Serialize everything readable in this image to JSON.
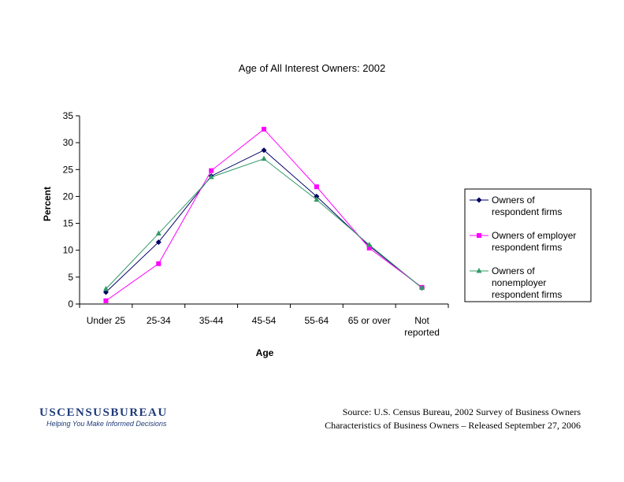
{
  "chart_data": {
    "type": "line",
    "title": "Age of All Interest Owners:  2002",
    "xlabel": "Age",
    "ylabel": "Percent",
    "categories": [
      [
        "Under 25"
      ],
      [
        "25-34"
      ],
      [
        "35-44"
      ],
      [
        "45-54"
      ],
      [
        "55-64"
      ],
      [
        "65 or over"
      ],
      [
        "Not",
        "reported"
      ]
    ],
    "ylim": [
      0,
      35
    ],
    "yticks": [
      0,
      5,
      10,
      15,
      20,
      25,
      30,
      35
    ],
    "grid": false,
    "legend_position": "right",
    "series": [
      {
        "name": [
          "Owners of",
          "respondent firms"
        ],
        "color": "#000066",
        "marker": "diamond",
        "values": [
          2.2,
          11.5,
          23.8,
          28.6,
          20.0,
          10.8,
          3.0
        ]
      },
      {
        "name": [
          "Owners of employer",
          "respondent firms"
        ],
        "color": "#ff00ff",
        "marker": "square",
        "values": [
          0.6,
          7.5,
          24.8,
          32.5,
          21.8,
          10.4,
          3.1
        ]
      },
      {
        "name": [
          "Owners of",
          "nonemployer",
          "respondent firms"
        ],
        "color": "#339966",
        "marker": "triangle",
        "values": [
          2.8,
          13.1,
          23.6,
          27.0,
          19.4,
          11.0,
          3.0
        ]
      }
    ]
  },
  "logo": {
    "wordmark": "USCENSUSBUREAU",
    "tagline": "Helping You Make Informed Decisions",
    "color": "#1f3a7a"
  },
  "source": {
    "line1": "Source:  U.S. Census Bureau, 2002 Survey of Business Owners",
    "line2": "Characteristics of Business Owners – Released September 27, 2006"
  }
}
